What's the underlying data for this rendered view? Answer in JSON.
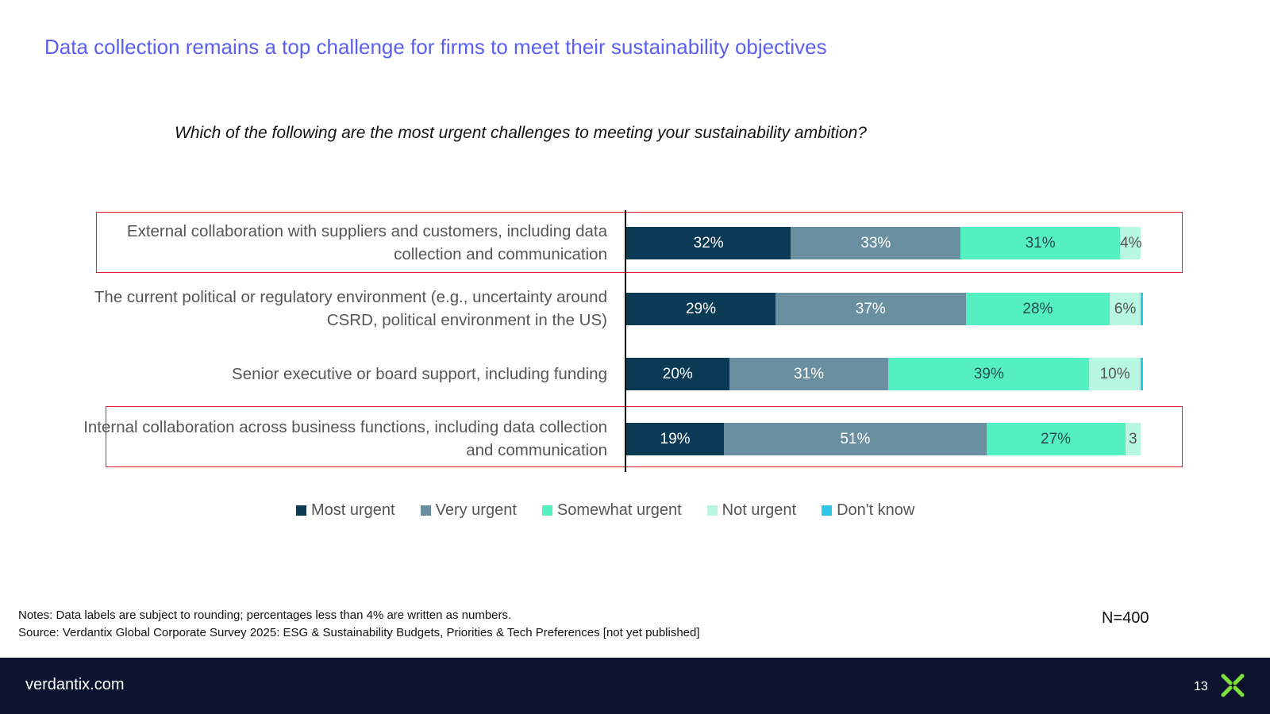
{
  "title": "Data collection remains a top challenge for firms to meet their sustainability objectives",
  "question": "Which of the following are the most urgent challenges to meeting your sustainability ambition?",
  "chart_data": {
    "type": "bar",
    "orientation": "horizontal-stacked-100",
    "categories": [
      "External collaboration with suppliers and customers, including data collection and communication",
      "The current political or regulatory environment (e.g., uncertainty around CSRD, political environment in the US)",
      "Senior executive or board support, including funding",
      "Internal collaboration across business functions, including data collection and communication"
    ],
    "series": [
      {
        "name": "Most urgent",
        "color": "#0b3a56",
        "values": [
          32,
          29,
          20,
          19
        ],
        "labels": [
          "32%",
          "29%",
          "20%",
          "19%"
        ]
      },
      {
        "name": "Very urgent",
        "color": "#6a8fa1",
        "values": [
          33,
          37,
          31,
          51
        ],
        "labels": [
          "33%",
          "37%",
          "31%",
          "51%"
        ]
      },
      {
        "name": "Somewhat urgent",
        "color": "#55f0c1",
        "values": [
          31,
          28,
          39,
          27
        ],
        "labels": [
          "31%",
          "28%",
          "39%",
          "27%"
        ]
      },
      {
        "name": "Not urgent",
        "color": "#b8f8e3",
        "values": [
          4,
          6,
          10,
          3
        ],
        "labels": [
          "4%",
          "6%",
          "10%",
          "3"
        ]
      },
      {
        "name": "Don't know",
        "color": "#2ec8e6",
        "values": [
          0,
          0.4,
          0.2,
          0
        ],
        "labels": [
          "",
          "",
          "",
          ""
        ]
      }
    ],
    "highlighted_rows": [
      0,
      3
    ],
    "xlim": [
      0,
      100
    ]
  },
  "notes": {
    "line1": "Notes: Data labels are subject to rounding; percentages less than 4% are written as numbers.",
    "line2": "Source: Verdantix Global Corporate Survey 2025: ESG & Sustainability Budgets, Priorities & Tech Preferences [not yet published]"
  },
  "sample_size": "N=400",
  "footer": {
    "site": "verdantix.com",
    "page": "13",
    "logo": "verdantix-logo-icon"
  }
}
